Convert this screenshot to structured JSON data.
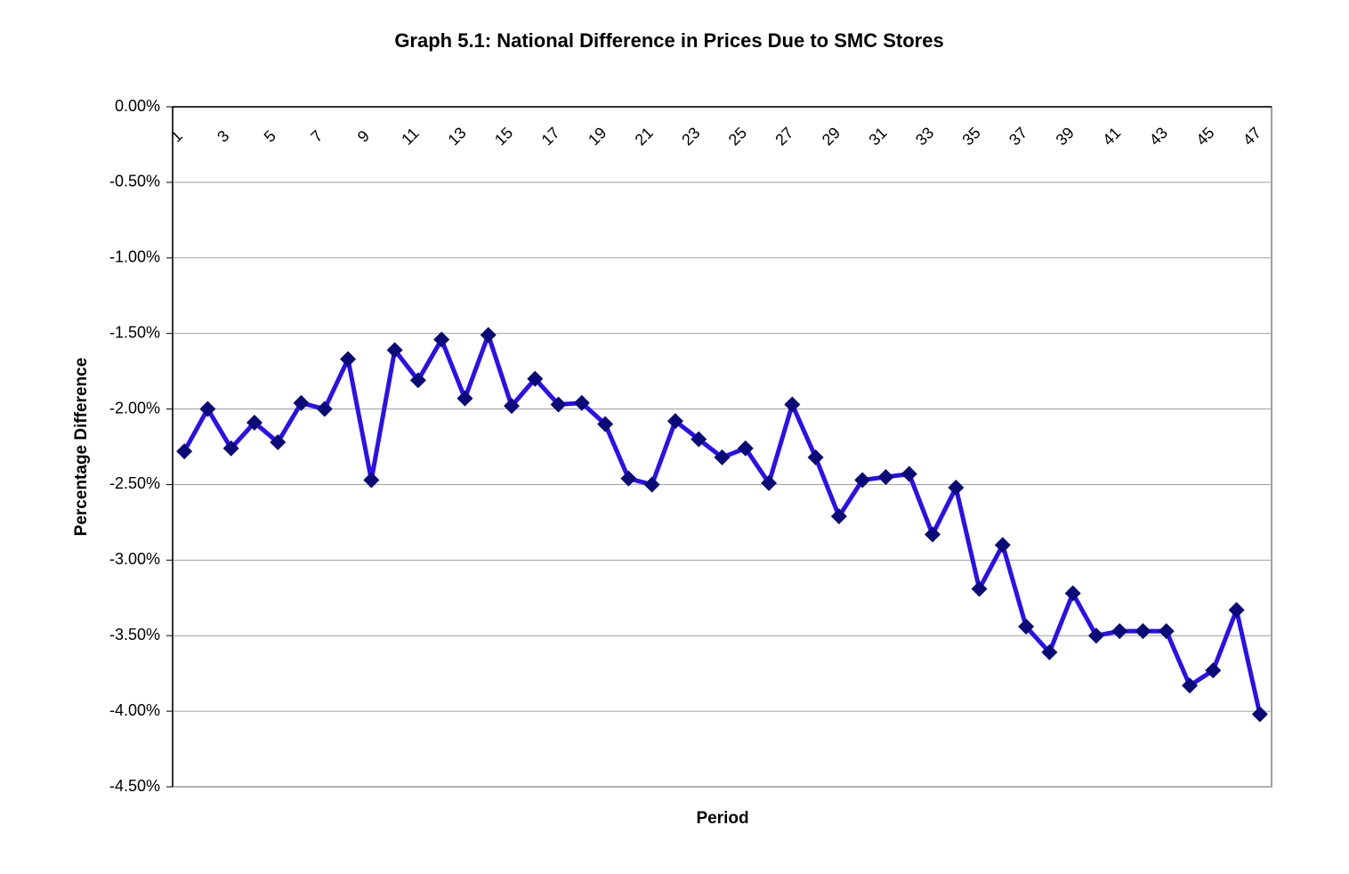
{
  "chart_data": {
    "type": "line",
    "title": "Graph 5.1: National Difference in Prices Due to SMC Stores",
    "x_label": "Period",
    "y_label": "Percentage Difference",
    "categories": [
      "1",
      null,
      "3",
      null,
      "5",
      null,
      "7",
      null,
      "9",
      null,
      "11",
      null,
      "13",
      null,
      "15",
      null,
      "17",
      null,
      "19",
      null,
      "21",
      null,
      "23",
      null,
      "25",
      null,
      "27",
      null,
      "29",
      null,
      "31",
      null,
      "33",
      null,
      "35",
      null,
      "37",
      null,
      "39",
      null,
      "41",
      null,
      "43",
      null,
      "45",
      null,
      "47"
    ],
    "series": [
      {
        "name": "National Difference",
        "color": "#2a0ff0",
        "marker_color": "#0a0a78",
        "values": [
          -2.28,
          -2.0,
          -2.26,
          -2.09,
          -2.22,
          -1.96,
          -2.0,
          -1.67,
          -2.47,
          -1.61,
          -1.81,
          -1.54,
          -1.93,
          -1.51,
          -1.98,
          -1.8,
          -1.97,
          -1.96,
          -2.1,
          -2.46,
          -2.5,
          -2.08,
          -2.2,
          -2.32,
          -2.26,
          -2.49,
          -1.97,
          -2.32,
          -2.71,
          -2.47,
          -2.45,
          -2.43,
          -2.83,
          -2.52,
          -3.19,
          -2.9,
          -3.44,
          -3.61,
          -3.22,
          -3.5,
          -3.47,
          -3.47,
          -3.47,
          -3.83,
          -3.73,
          -3.33,
          -4.02
        ]
      }
    ],
    "ylim": [
      -4.5,
      0
    ],
    "yticks": [
      {
        "value": 0,
        "label": "0.00%"
      },
      {
        "value": -0.5,
        "label": "-0.50%"
      },
      {
        "value": -1,
        "label": "-1.00%"
      },
      {
        "value": -1.5,
        "label": "-1.50%"
      },
      {
        "value": -2,
        "label": "-2.00%"
      },
      {
        "value": -2.5,
        "label": "-2.50%"
      },
      {
        "value": -3,
        "label": "-3.00%"
      },
      {
        "value": -3.5,
        "label": "-3.50%"
      },
      {
        "value": -4,
        "label": "-4.00%"
      },
      {
        "value": -4.5,
        "label": "-4.50%"
      }
    ],
    "grid": true
  }
}
